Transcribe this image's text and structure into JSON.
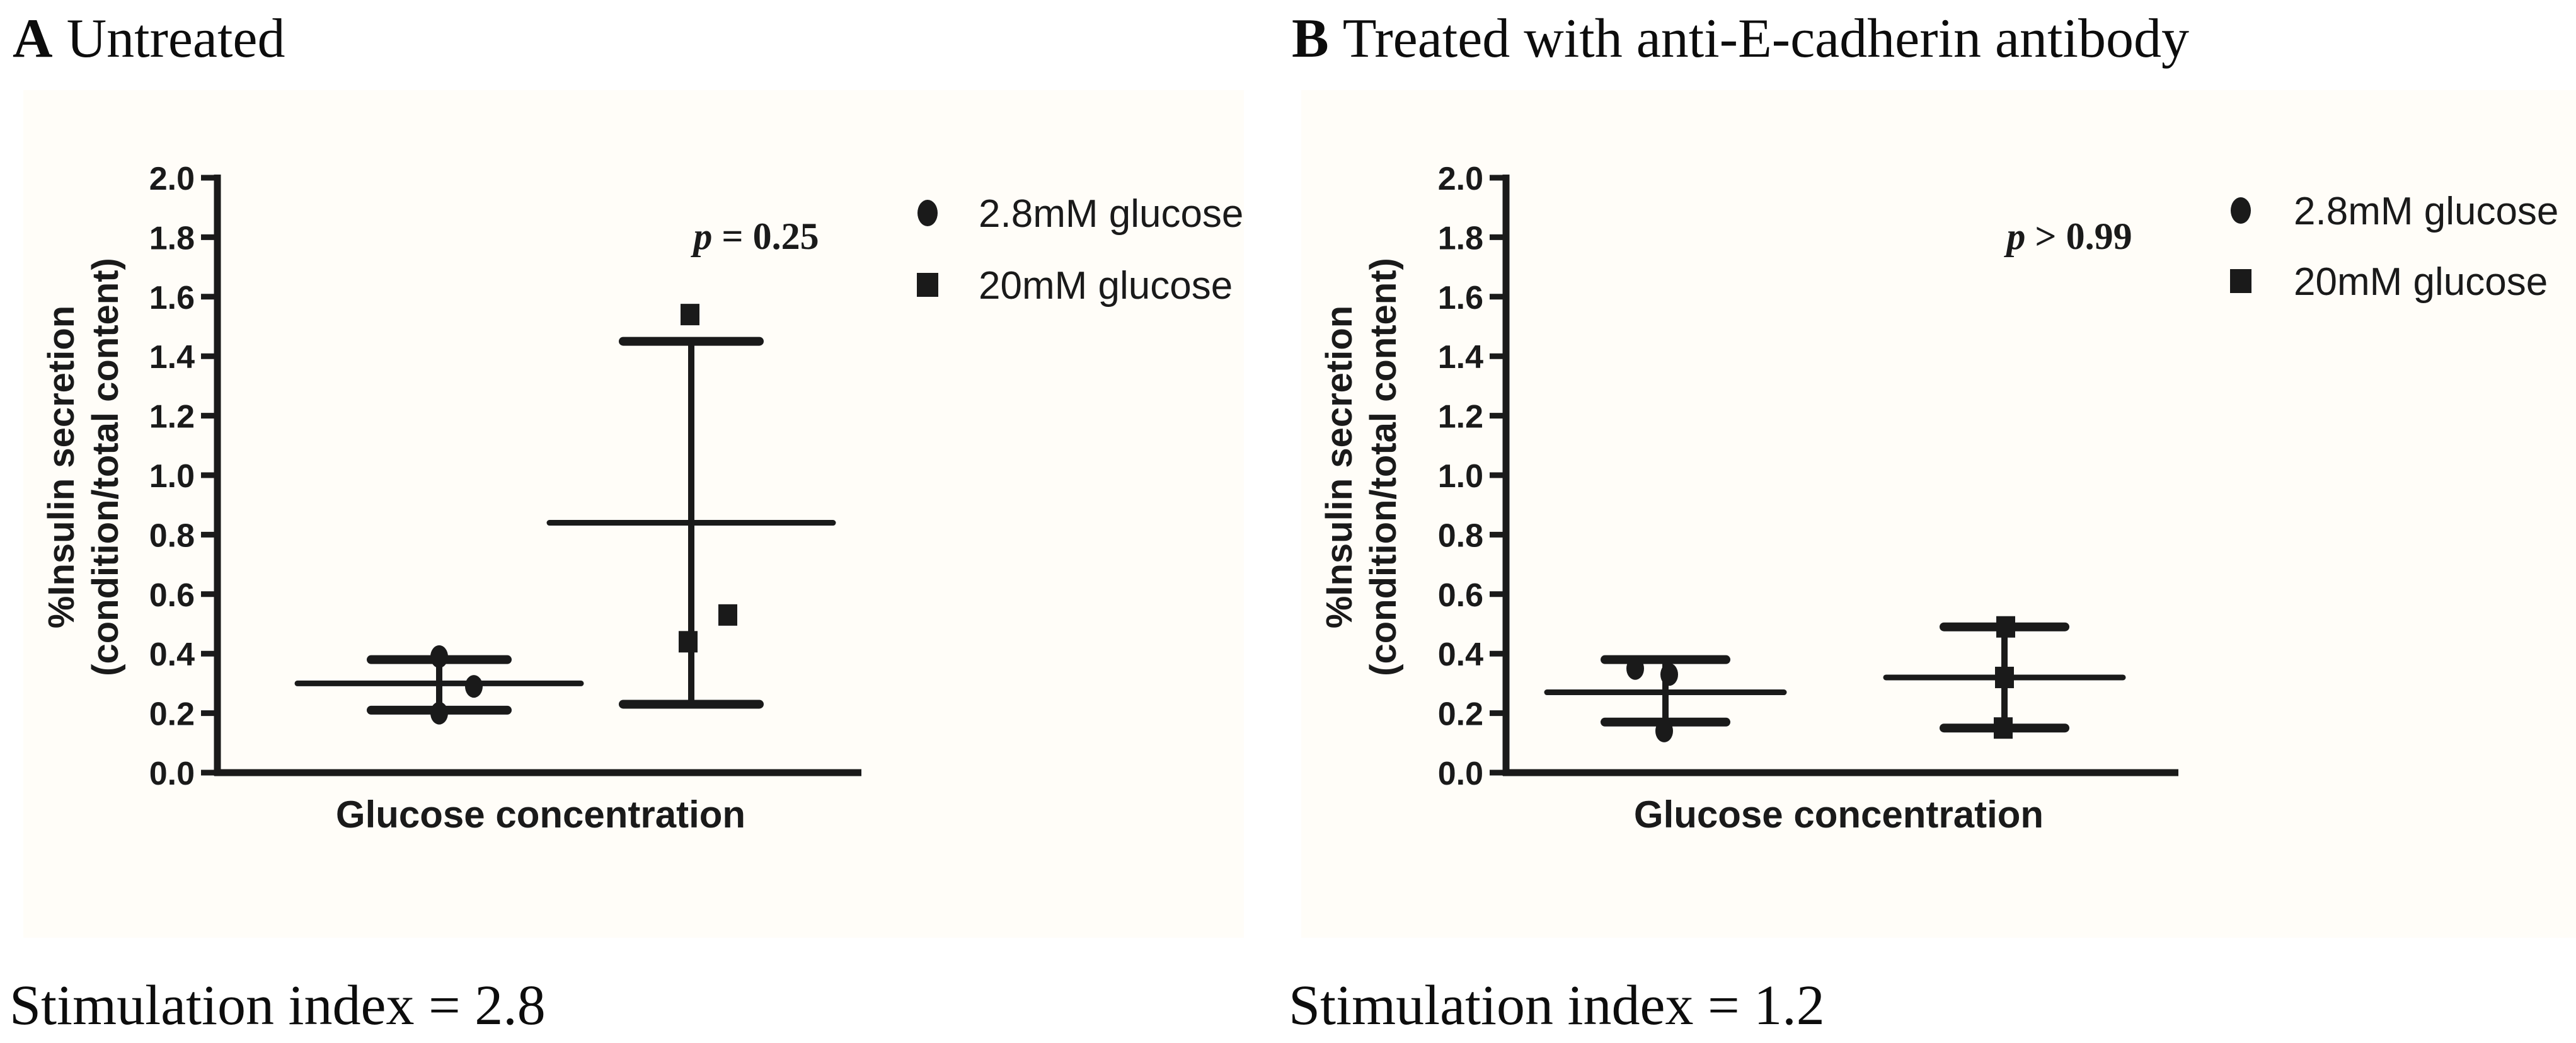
{
  "figure": {
    "background": "#ffffff",
    "panel_bg": "#fffdf8",
    "ink": "#1a1a1a"
  },
  "chart_data": [
    {
      "type": "scatter",
      "panel_label": "A",
      "title": "Untreated",
      "p_text": "p = 0.25",
      "stimulation_index_text": "Stimulation index = 2.8",
      "xlabel": "Glucose concentration",
      "ylabel_lines": [
        "%Insulin secretion",
        "(condition/total content)"
      ],
      "ylim": [
        0.0,
        2.0
      ],
      "yticks": [
        "0.0",
        "0.2",
        "0.4",
        "0.6",
        "0.8",
        "1.0",
        "1.2",
        "1.4",
        "1.6",
        "1.8",
        "2.0"
      ],
      "grid": false,
      "legend_position": "right-top",
      "legend": [
        {
          "marker": "circle",
          "label": "2.8mM glucose"
        },
        {
          "marker": "square",
          "label": "20mM glucose"
        }
      ],
      "groups": [
        {
          "name": "2.8mM glucose",
          "marker": "circle",
          "points": [
            0.39,
            0.29,
            0.2
          ],
          "jitter": [
            0,
            55,
            0
          ],
          "mean": 0.3,
          "sd_high": 0.38,
          "sd_low": 0.21
        },
        {
          "name": "20mM glucose",
          "marker": "square",
          "points": [
            1.54,
            0.53,
            0.44
          ],
          "jitter": [
            -2,
            58,
            -5
          ],
          "mean": 0.84,
          "sd_high": 1.45,
          "sd_low": 0.23
        }
      ]
    },
    {
      "type": "scatter",
      "panel_label": "B",
      "title": "Treated with anti-E-cadherin antibody",
      "p_text": "p > 0.99",
      "stimulation_index_text": "Stimulation index = 1.2",
      "xlabel": "Glucose concentration",
      "ylabel_lines": [
        "%Insulin secretion",
        "(condition/total content)"
      ],
      "ylim": [
        0.0,
        2.0
      ],
      "yticks": [
        "0.0",
        "0.2",
        "0.4",
        "0.6",
        "0.8",
        "1.0",
        "1.2",
        "1.4",
        "1.6",
        "1.8",
        "2.0"
      ],
      "grid": false,
      "legend_position": "right-top",
      "legend": [
        {
          "marker": "circle",
          "label": "2.8mM glucose"
        },
        {
          "marker": "square",
          "label": "20mM glucose"
        }
      ],
      "groups": [
        {
          "name": "2.8mM glucose",
          "marker": "circle",
          "points": [
            0.35,
            0.33,
            0.14
          ],
          "jitter": [
            -48,
            6,
            -2
          ],
          "mean": 0.27,
          "sd_high": 0.38,
          "sd_low": 0.17
        },
        {
          "name": "20mM glucose",
          "marker": "square",
          "points": [
            0.49,
            0.32,
            0.15
          ],
          "jitter": [
            2,
            0,
            -2
          ],
          "mean": 0.32,
          "sd_high": 0.49,
          "sd_low": 0.15
        }
      ]
    }
  ]
}
